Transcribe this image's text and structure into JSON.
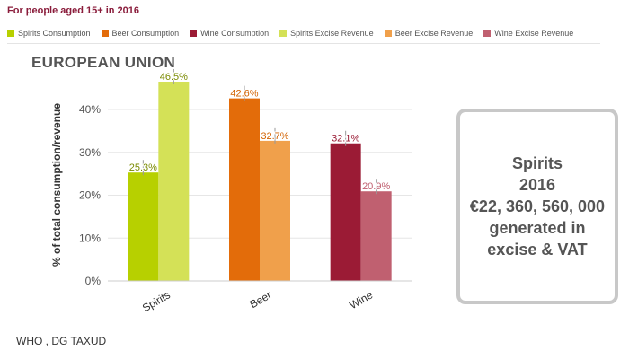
{
  "header": {
    "subtitle": "For people aged 15+ in 2016"
  },
  "legend": [
    {
      "label": "Spirits Consumption",
      "color": "#b7d000"
    },
    {
      "label": "Beer Consumption",
      "color": "#e36c0a"
    },
    {
      "label": "Wine Consumption",
      "color": "#9b1b35"
    },
    {
      "label": "Spirits Excise Revenue",
      "color": "#d4e157"
    },
    {
      "label": "Beer Excise Revenue",
      "color": "#f0a04b"
    },
    {
      "label": "Wine Excise Revenue",
      "color": "#c06070"
    }
  ],
  "chart_data": {
    "type": "bar",
    "title": "EUROPEAN UNION",
    "ylabel": "% of total consumption/revenue",
    "xlabel": "",
    "categories": [
      "Spirits",
      "Beer",
      "Wine"
    ],
    "ylim": [
      0,
      46.5
    ],
    "yticks": [
      0,
      10,
      20,
      30,
      40
    ],
    "ytick_labels": [
      "0%",
      "10%",
      "20%",
      "30%",
      "40%"
    ],
    "grid": true,
    "series": [
      {
        "name": "Consumption",
        "values": [
          25.3,
          42.6,
          32.1
        ],
        "labels": [
          "25.3%",
          "42.6%",
          "32.1%"
        ],
        "colors": [
          "#b7d000",
          "#e36c0a",
          "#9b1b35"
        ]
      },
      {
        "name": "Excise Revenue",
        "values": [
          46.5,
          32.7,
          20.9
        ],
        "labels": [
          "46.5%",
          "32.7%",
          "20.9%"
        ],
        "colors": [
          "#d4e157",
          "#f0a04b",
          "#c06070"
        ]
      }
    ]
  },
  "source": "WHO , DG TAXUD",
  "infobox": {
    "lines": [
      "Spirits",
      "2016",
      "€22, 360, 560, 000",
      "generated in",
      "excise & VAT"
    ]
  }
}
